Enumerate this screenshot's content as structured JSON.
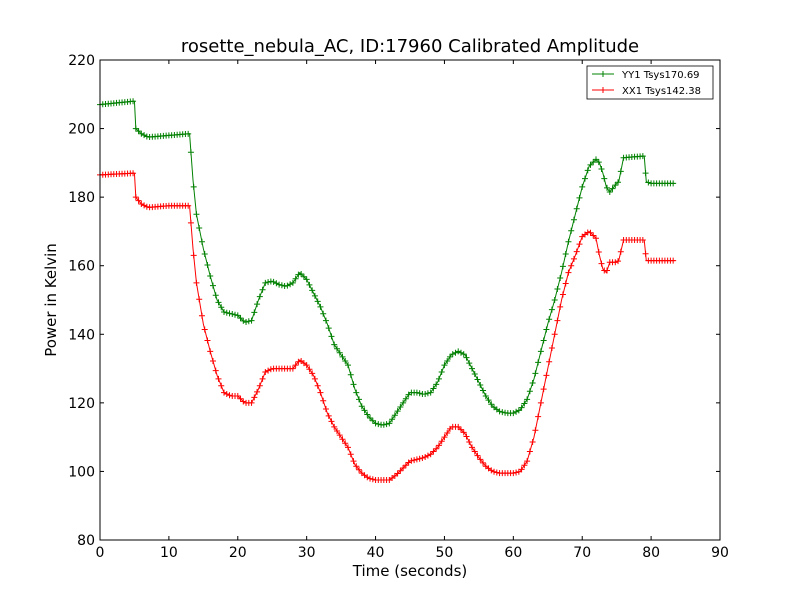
{
  "chart_data": {
    "type": "line",
    "title": "rosette_nebula_AC, ID:17960 Calibrated Amplitude",
    "xlabel": "Time (seconds)",
    "ylabel": "Power in Kelvin",
    "xlim": [
      0,
      90
    ],
    "ylim": [
      80,
      220
    ],
    "xticks": [
      0,
      10,
      20,
      30,
      40,
      50,
      60,
      70,
      80,
      90
    ],
    "yticks": [
      80,
      100,
      120,
      140,
      160,
      180,
      200,
      220
    ],
    "xtick_labels": [
      "0",
      "10",
      "20",
      "30",
      "40",
      "50",
      "60",
      "70",
      "80",
      "90"
    ],
    "ytick_labels": [
      "80",
      "100",
      "120",
      "140",
      "160",
      "180",
      "200",
      "220"
    ],
    "grid": false,
    "legend_position": "top-right",
    "marker": "+",
    "series": [
      {
        "name": "YY1 Tsys170.69",
        "color": "#008000",
        "x": [
          0,
          5,
          5.2,
          6,
          7,
          10,
          13,
          13.5,
          14,
          15,
          16,
          17,
          18,
          19,
          20,
          21,
          22,
          23,
          24,
          25,
          26,
          27,
          28,
          29,
          30,
          31,
          32,
          33,
          34,
          35,
          36,
          37,
          38,
          39,
          40,
          41,
          42,
          43,
          44,
          45,
          46,
          47,
          48,
          49,
          50,
          51,
          52,
          53,
          54,
          55,
          56,
          57,
          58,
          59,
          60,
          61,
          62,
          63,
          64,
          65,
          66,
          67,
          68,
          69,
          70,
          71,
          72,
          72.5,
          73,
          73.5,
          74,
          75,
          75.3,
          76,
          79,
          79.3,
          80,
          83.5
        ],
        "y": [
          207,
          208,
          200,
          198.5,
          197.5,
          198,
          198.5,
          185,
          175,
          165,
          157,
          150,
          146.5,
          146,
          145.5,
          143.5,
          144,
          150,
          155,
          155.5,
          154.5,
          154,
          155,
          158,
          156,
          152,
          148,
          143,
          137,
          134,
          131,
          124,
          119,
          116,
          114,
          113.5,
          114,
          117,
          120,
          123,
          123,
          122.5,
          123,
          126,
          131,
          134,
          135,
          134,
          130,
          126,
          122,
          119,
          117.5,
          117,
          117,
          118,
          121,
          127,
          135,
          143,
          150,
          158,
          167,
          175,
          183,
          189,
          191,
          190,
          187,
          183,
          181.5,
          184,
          184.5,
          191.5,
          192,
          184.5,
          184,
          184
        ]
      },
      {
        "name": "XX1 Tsys142.38",
        "color": "#ff0000",
        "x": [
          0,
          5,
          5.2,
          6,
          7,
          10,
          13,
          13.5,
          14,
          15,
          16,
          17,
          18,
          19,
          20,
          21,
          22,
          23,
          24,
          25,
          26,
          27,
          28,
          29,
          30,
          31,
          32,
          33,
          34,
          35,
          36,
          37,
          38,
          39,
          40,
          41,
          42,
          43,
          44,
          45,
          46,
          47,
          48,
          49,
          50,
          51,
          52,
          53,
          54,
          55,
          56,
          57,
          58,
          59,
          60,
          61,
          62,
          63,
          64,
          65,
          66,
          67,
          68,
          69,
          70,
          71,
          72,
          72.5,
          73,
          73.5,
          74,
          75,
          75.3,
          76,
          79,
          79.3,
          80,
          83.5
        ],
        "y": [
          186.5,
          187,
          180,
          178,
          177,
          177.5,
          177.5,
          165,
          155,
          143,
          135,
          128,
          123,
          122,
          122,
          120,
          120,
          124,
          129,
          130,
          130,
          130,
          130,
          132.5,
          131,
          128,
          123,
          117,
          113,
          110,
          107,
          102,
          99.5,
          98,
          97.5,
          97.5,
          97.5,
          99,
          101,
          103,
          103.5,
          104,
          105,
          107,
          110,
          113,
          113,
          111,
          107,
          104,
          101.5,
          100,
          99.5,
          99.5,
          99.5,
          100,
          103,
          110,
          120,
          130,
          140,
          150,
          158,
          163,
          168.5,
          170,
          168,
          163,
          159,
          158,
          161,
          161,
          161.5,
          167.5,
          167.5,
          161.5,
          161.5,
          161.5
        ]
      }
    ]
  }
}
